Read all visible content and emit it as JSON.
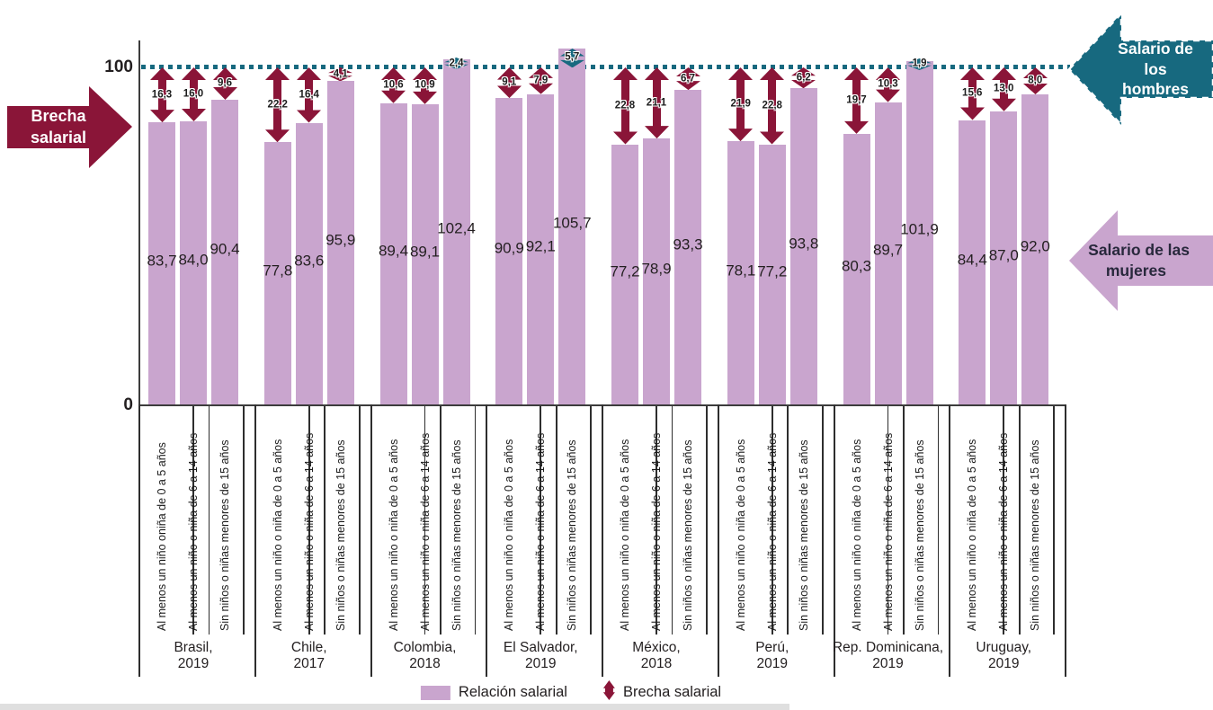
{
  "colors": {
    "bar": "#c9a5ce",
    "gap_arrow": "#8a1538",
    "above_arrow": "#17697f",
    "reference_line": "#17697f",
    "text": "#231f20"
  },
  "axis": {
    "y_top_label": "100",
    "y_bottom_label": "0"
  },
  "annotations": {
    "gap_arrow_label": {
      "line1": "Brecha",
      "line2": "salarial"
    },
    "men_wage_label": {
      "line1": "Salario de los",
      "line2": "hombres"
    },
    "women_wage_label": {
      "line1": "Salario de las",
      "line2": "mujeres"
    }
  },
  "legend": {
    "items": [
      {
        "label": "Relación salarial",
        "swatch": "bar"
      },
      {
        "label": "Brecha salarial",
        "swatch": "gap-arrow"
      }
    ]
  },
  "chart_data": {
    "type": "bar",
    "ylim": [
      0,
      110
    ],
    "yticks": [
      0,
      100
    ],
    "grid": false,
    "reference_line": {
      "value": 100,
      "label": "Salario de los hombres"
    },
    "groups": [
      {
        "country": "Brasil,",
        "year": "2019",
        "bars": [
          {
            "category": "Al menos un niño oniña de 0 a 5 años",
            "value": 83.7,
            "value_label": "83,7",
            "gap": 16.3,
            "gap_label": "16,3"
          },
          {
            "category": "Al menos un niño o niña de 6 a 14 años",
            "value": 84.0,
            "value_label": "84,0",
            "gap": 16.0,
            "gap_label": "16,0"
          },
          {
            "category": "Sin niños o niñas menores de 15 años",
            "value": 90.4,
            "value_label": "90,4",
            "gap": 9.6,
            "gap_label": "9,6"
          }
        ]
      },
      {
        "country": "Chile,",
        "year": "2017",
        "bars": [
          {
            "category": "Al menos un niño o niña de 0 a 5 años",
            "value": 77.8,
            "value_label": "77,8",
            "gap": 22.2,
            "gap_label": "22,2"
          },
          {
            "category": "Al menos un niño o niña de 6 a 14 años",
            "value": 83.6,
            "value_label": "83,6",
            "gap": 16.4,
            "gap_label": "16,4"
          },
          {
            "category": "Sin niños o niñas menores de 15 años",
            "value": 95.9,
            "value_label": "95,9",
            "gap": 4.1,
            "gap_label": "4,1"
          }
        ]
      },
      {
        "country": "Colombia,",
        "year": "2018",
        "bars": [
          {
            "category": "Al menos un niño o niña de 0 a 5 años",
            "value": 89.4,
            "value_label": "89,4",
            "gap": 10.6,
            "gap_label": "10,6"
          },
          {
            "category": "Al menos un niño o niña de 6 a 14 años",
            "value": 89.1,
            "value_label": "89,1",
            "gap": 10.9,
            "gap_label": "10,9"
          },
          {
            "category": "Sin niños o niñas menores de 15 años",
            "value": 102.4,
            "value_label": "102,4",
            "gap": 2.4,
            "gap_label": "2,4"
          }
        ]
      },
      {
        "country": "El Salvador,",
        "year": "2019",
        "bars": [
          {
            "category": "Al menos un niño o niña de 0 a 5 años",
            "value": 90.9,
            "value_label": "90,9",
            "gap": 9.1,
            "gap_label": "9,1"
          },
          {
            "category": "Al menos un niño o niña de 6 a 14 años",
            "value": 92.1,
            "value_label": "92,1",
            "gap": 7.9,
            "gap_label": "7,9"
          },
          {
            "category": "Sin niños o niñas menores de 15 años",
            "value": 105.7,
            "value_label": "105,7",
            "gap": 5.7,
            "gap_label": "5,7"
          }
        ]
      },
      {
        "country": "México,",
        "year": "2018",
        "bars": [
          {
            "category": "Al menos un niño o niña de 0 a 5 años",
            "value": 77.2,
            "value_label": "77,2",
            "gap": 22.8,
            "gap_label": "22,8"
          },
          {
            "category": "Al menos un niño o niña de 6 a 14 años",
            "value": 78.9,
            "value_label": "78,9",
            "gap": 21.1,
            "gap_label": "21,1"
          },
          {
            "category": "Sin niños o niñas menores de 15 años",
            "value": 93.3,
            "value_label": "93,3",
            "gap": 6.7,
            "gap_label": "6,7"
          }
        ]
      },
      {
        "country": "Perú,",
        "year": "2019",
        "bars": [
          {
            "category": "Al menos un niño o niña de 0 a 5 años",
            "value": 78.1,
            "value_label": "78,1",
            "gap": 21.9,
            "gap_label": "21,9"
          },
          {
            "category": "Al menos un niño o niña de 6 a 14 años",
            "value": 77.2,
            "value_label": "77,2",
            "gap": 22.8,
            "gap_label": "22,8"
          },
          {
            "category": "Sin niños o niñas menores de 15 años",
            "value": 93.8,
            "value_label": "93,8",
            "gap": 6.2,
            "gap_label": "6,2"
          }
        ]
      },
      {
        "country": "Rep. Dominicana,",
        "year": "2019",
        "bars": [
          {
            "category": "Al menos un niño o niña de 0 a 5 años",
            "value": 80.3,
            "value_label": "80,3",
            "gap": 19.7,
            "gap_label": "19,7"
          },
          {
            "category": "Al menos un niño o niña de 6 a 14 años",
            "value": 89.7,
            "value_label": "89,7",
            "gap": 10.3,
            "gap_label": "10,3"
          },
          {
            "category": "Sin niños o niñas menores de 15 años",
            "value": 101.9,
            "value_label": "101,9",
            "gap": 1.9,
            "gap_label": "1,9"
          }
        ]
      },
      {
        "country": "Uruguay,",
        "year": "2019",
        "bars": [
          {
            "category": "Al menos un niño o niña de 0 a 5 años",
            "value": 84.4,
            "value_label": "84,4",
            "gap": 15.6,
            "gap_label": "15,6"
          },
          {
            "category": "Al menos un niño o niña de 6 a 14 años",
            "value": 87.0,
            "value_label": "87,0",
            "gap": 13.0,
            "gap_label": "13,0"
          },
          {
            "category": "Sin niños o niñas menores de 15 años",
            "value": 92.0,
            "value_label": "92,0",
            "gap": 8.0,
            "gap_label": "8,0"
          }
        ]
      }
    ]
  }
}
